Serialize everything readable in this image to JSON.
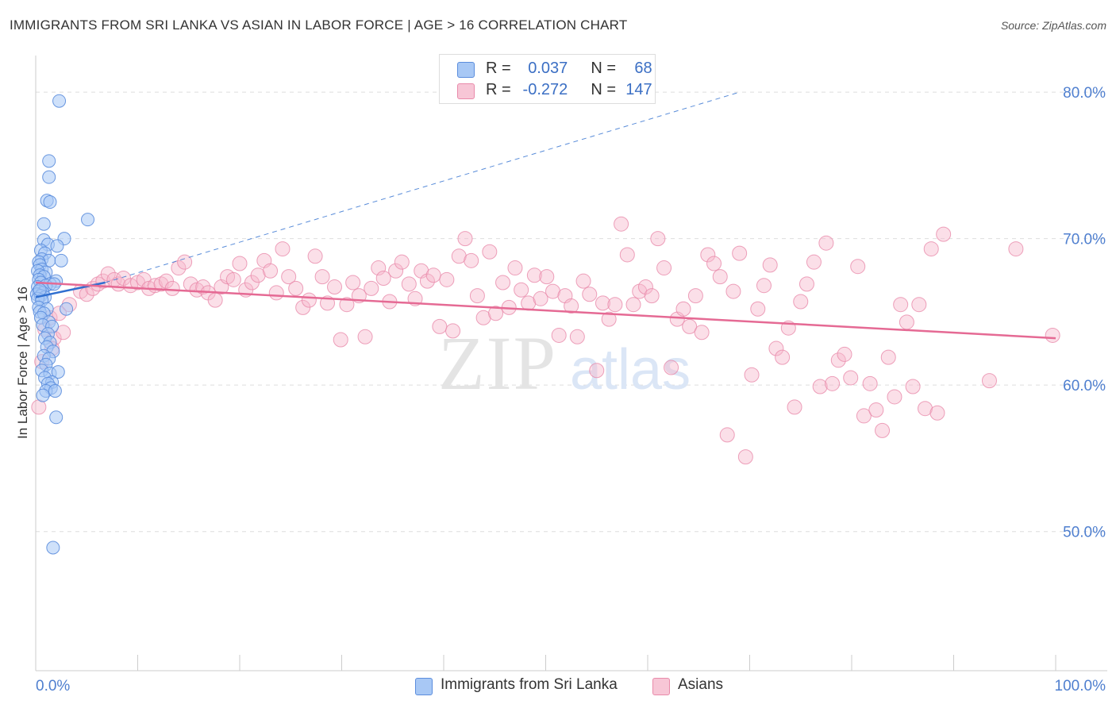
{
  "title": "IMMIGRANTS FROM SRI LANKA VS ASIAN IN LABOR FORCE | AGE > 16 CORRELATION CHART",
  "source": "Source: ZipAtlas.com",
  "watermark": {
    "zip": "ZIP",
    "atlas": "atlas"
  },
  "legend": {
    "series1": {
      "r_label": "R =",
      "r_value": "0.037",
      "n_label": "N =",
      "n_value": "68"
    },
    "series2": {
      "r_label": "R =",
      "r_value": "-0.272",
      "n_label": "N =",
      "n_value": "147"
    }
  },
  "colors": {
    "blue_fill": "#a8c8f5",
    "blue_stroke": "#5b8ddd",
    "blue_line": "#2f6fd0",
    "pink_fill": "#f7b8cc",
    "pink_stroke": "#e98aaa",
    "pink_line": "#e56a94",
    "grid": "#dddddd",
    "tick_text": "#4f7fcf"
  },
  "chart_data": {
    "type": "scatter",
    "title": "IMMIGRANTS FROM SRI LANKA VS ASIAN IN LABOR FORCE | AGE > 16 CORRELATION CHART",
    "xlabel": "",
    "ylabel": "In Labor Force | Age > 16",
    "xlim": [
      0,
      100
    ],
    "ylim": [
      40.5,
      82.5
    ],
    "x_tick_labels": [
      "0.0%",
      "100.0%"
    ],
    "y_ticks": [
      50,
      60,
      70,
      80
    ],
    "y_tick_labels": [
      "50.0%",
      "60.0%",
      "70.0%",
      "80.0%"
    ],
    "series": [
      {
        "name": "Immigrants from Sri Lanka",
        "color": "blue",
        "r": 0.037,
        "n": 68,
        "trend_solid": [
          [
            0,
            66.0
          ],
          [
            6.8,
            67.0
          ]
        ],
        "trend_dashed": [
          [
            6.8,
            67.0
          ],
          [
            69.0,
            80.0
          ]
        ],
        "points": [
          [
            2.3,
            79.4
          ],
          [
            1.3,
            75.3
          ],
          [
            1.3,
            74.2
          ],
          [
            1.1,
            72.6
          ],
          [
            1.4,
            72.5
          ],
          [
            5.1,
            71.3
          ],
          [
            0.8,
            71.0
          ],
          [
            2.8,
            70.0
          ],
          [
            0.8,
            69.9
          ],
          [
            1.2,
            69.6
          ],
          [
            2.1,
            69.5
          ],
          [
            0.5,
            69.2
          ],
          [
            0.9,
            69.0
          ],
          [
            0.6,
            68.6
          ],
          [
            1.3,
            68.5
          ],
          [
            0.3,
            68.4
          ],
          [
            2.5,
            68.5
          ],
          [
            0.4,
            68.2
          ],
          [
            0.6,
            67.9
          ],
          [
            1.0,
            67.7
          ],
          [
            0.2,
            67.8
          ],
          [
            0.4,
            67.5
          ],
          [
            0.8,
            67.4
          ],
          [
            0.3,
            67.2
          ],
          [
            2.0,
            67.1
          ],
          [
            0.5,
            67.0
          ],
          [
            1.4,
            66.9
          ],
          [
            0.2,
            66.7
          ],
          [
            0.6,
            66.6
          ],
          [
            1.0,
            66.8
          ],
          [
            0.3,
            66.4
          ],
          [
            0.7,
            66.3
          ],
          [
            0.1,
            66.2
          ],
          [
            0.5,
            66.1
          ],
          [
            0.9,
            66.0
          ],
          [
            0.2,
            65.9
          ],
          [
            0.6,
            65.8
          ],
          [
            0.3,
            65.3
          ],
          [
            1.1,
            65.2
          ],
          [
            0.4,
            65.0
          ],
          [
            0.8,
            64.9
          ],
          [
            3.0,
            65.2
          ],
          [
            0.5,
            64.6
          ],
          [
            1.3,
            64.3
          ],
          [
            0.7,
            64.1
          ],
          [
            1.6,
            64.0
          ],
          [
            1.2,
            63.5
          ],
          [
            0.9,
            63.2
          ],
          [
            1.4,
            62.9
          ],
          [
            1.1,
            62.6
          ],
          [
            1.7,
            62.3
          ],
          [
            0.8,
            62.0
          ],
          [
            1.3,
            61.8
          ],
          [
            1.0,
            61.4
          ],
          [
            0.6,
            61.0
          ],
          [
            1.4,
            60.8
          ],
          [
            2.2,
            60.9
          ],
          [
            0.9,
            60.5
          ],
          [
            1.6,
            60.2
          ],
          [
            1.2,
            60.1
          ],
          [
            1.5,
            59.8
          ],
          [
            1.0,
            59.6
          ],
          [
            0.7,
            59.3
          ],
          [
            1.9,
            59.6
          ],
          [
            2.0,
            57.8
          ],
          [
            1.7,
            48.9
          ],
          [
            0.4,
            66.5
          ],
          [
            1.8,
            66.9
          ]
        ]
      },
      {
        "name": "Asians",
        "color": "pink",
        "r": -0.272,
        "n": 147,
        "trend_solid": [
          [
            0,
            67.0
          ],
          [
            100,
            63.2
          ]
        ],
        "points": [
          [
            0.3,
            58.5
          ],
          [
            0.6,
            61.6
          ],
          [
            0.9,
            63.8
          ],
          [
            1.4,
            64.6
          ],
          [
            1.8,
            63.2
          ],
          [
            2.3,
            64.9
          ],
          [
            3.3,
            65.5
          ],
          [
            4.4,
            66.4
          ],
          [
            5.0,
            66.2
          ],
          [
            5.6,
            66.6
          ],
          [
            6.1,
            66.9
          ],
          [
            6.6,
            67.1
          ],
          [
            7.1,
            67.6
          ],
          [
            7.7,
            67.2
          ],
          [
            8.1,
            66.9
          ],
          [
            8.6,
            67.3
          ],
          [
            9.3,
            66.8
          ],
          [
            10.0,
            67.0
          ],
          [
            10.6,
            67.2
          ],
          [
            11.1,
            66.6
          ],
          [
            11.7,
            66.8
          ],
          [
            12.3,
            66.9
          ],
          [
            12.8,
            67.1
          ],
          [
            13.4,
            66.6
          ],
          [
            14.0,
            68.0
          ],
          [
            14.6,
            68.4
          ],
          [
            15.2,
            66.9
          ],
          [
            15.8,
            66.5
          ],
          [
            16.4,
            66.7
          ],
          [
            16.9,
            66.3
          ],
          [
            17.6,
            65.8
          ],
          [
            18.2,
            66.7
          ],
          [
            18.8,
            67.4
          ],
          [
            19.4,
            67.2
          ],
          [
            20.0,
            68.3
          ],
          [
            20.6,
            66.5
          ],
          [
            21.2,
            67.0
          ],
          [
            21.8,
            67.5
          ],
          [
            22.4,
            68.5
          ],
          [
            23.0,
            67.8
          ],
          [
            23.6,
            66.3
          ],
          [
            24.2,
            69.3
          ],
          [
            24.8,
            67.4
          ],
          [
            25.5,
            66.6
          ],
          [
            26.2,
            65.3
          ],
          [
            26.8,
            65.8
          ],
          [
            27.4,
            68.8
          ],
          [
            28.1,
            67.4
          ],
          [
            28.6,
            65.6
          ],
          [
            29.3,
            66.7
          ],
          [
            29.9,
            63.1
          ],
          [
            30.5,
            65.5
          ],
          [
            31.1,
            67.0
          ],
          [
            31.7,
            66.1
          ],
          [
            32.3,
            63.3
          ],
          [
            32.9,
            66.6
          ],
          [
            33.6,
            68.0
          ],
          [
            34.1,
            67.3
          ],
          [
            34.7,
            65.7
          ],
          [
            35.3,
            67.8
          ],
          [
            35.9,
            68.4
          ],
          [
            36.6,
            66.9
          ],
          [
            37.2,
            65.9
          ],
          [
            37.8,
            67.8
          ],
          [
            38.4,
            67.1
          ],
          [
            39.0,
            67.5
          ],
          [
            39.6,
            64.0
          ],
          [
            40.3,
            67.2
          ],
          [
            40.9,
            63.7
          ],
          [
            41.5,
            68.8
          ],
          [
            42.1,
            70.0
          ],
          [
            42.7,
            68.5
          ],
          [
            43.3,
            66.1
          ],
          [
            43.9,
            64.6
          ],
          [
            44.5,
            69.1
          ],
          [
            45.1,
            64.9
          ],
          [
            45.8,
            67.0
          ],
          [
            46.4,
            65.3
          ],
          [
            47.0,
            68.0
          ],
          [
            47.6,
            66.5
          ],
          [
            48.3,
            65.6
          ],
          [
            48.9,
            67.5
          ],
          [
            49.5,
            65.9
          ],
          [
            50.1,
            67.4
          ],
          [
            50.7,
            66.4
          ],
          [
            51.3,
            63.4
          ],
          [
            51.9,
            66.1
          ],
          [
            52.5,
            65.4
          ],
          [
            53.1,
            63.3
          ],
          [
            53.7,
            67.1
          ],
          [
            54.3,
            66.2
          ],
          [
            55.0,
            61.0
          ],
          [
            55.6,
            65.6
          ],
          [
            56.2,
            64.5
          ],
          [
            56.8,
            65.5
          ],
          [
            57.4,
            71.0
          ],
          [
            58.0,
            68.9
          ],
          [
            58.6,
            65.5
          ],
          [
            59.2,
            66.4
          ],
          [
            59.8,
            66.7
          ],
          [
            60.4,
            66.1
          ],
          [
            61.0,
            70.0
          ],
          [
            61.6,
            68.0
          ],
          [
            62.3,
            61.2
          ],
          [
            62.9,
            64.5
          ],
          [
            63.5,
            65.2
          ],
          [
            64.1,
            64.0
          ],
          [
            64.7,
            66.1
          ],
          [
            65.3,
            63.6
          ],
          [
            65.9,
            68.9
          ],
          [
            66.5,
            68.3
          ],
          [
            67.1,
            67.4
          ],
          [
            67.8,
            56.6
          ],
          [
            68.4,
            66.4
          ],
          [
            69.0,
            69.0
          ],
          [
            69.6,
            55.1
          ],
          [
            70.2,
            60.7
          ],
          [
            70.8,
            65.2
          ],
          [
            71.4,
            66.8
          ],
          [
            72.0,
            68.2
          ],
          [
            72.6,
            62.5
          ],
          [
            73.2,
            61.9
          ],
          [
            73.8,
            63.9
          ],
          [
            74.4,
            58.5
          ],
          [
            75.0,
            65.7
          ],
          [
            75.6,
            66.9
          ],
          [
            76.3,
            68.4
          ],
          [
            76.9,
            59.9
          ],
          [
            77.5,
            69.7
          ],
          [
            78.1,
            60.1
          ],
          [
            78.7,
            61.7
          ],
          [
            79.3,
            62.1
          ],
          [
            79.9,
            60.5
          ],
          [
            80.6,
            68.1
          ],
          [
            81.2,
            57.9
          ],
          [
            81.8,
            60.1
          ],
          [
            82.4,
            58.3
          ],
          [
            83.0,
            56.9
          ],
          [
            83.6,
            61.9
          ],
          [
            84.2,
            59.2
          ],
          [
            84.8,
            65.5
          ],
          [
            85.4,
            64.3
          ],
          [
            86.0,
            59.9
          ],
          [
            86.6,
            65.5
          ],
          [
            87.2,
            58.4
          ],
          [
            87.8,
            69.3
          ],
          [
            88.4,
            58.1
          ],
          [
            89.0,
            70.3
          ],
          [
            93.5,
            60.3
          ],
          [
            96.1,
            69.3
          ],
          [
            99.7,
            63.4
          ],
          [
            1.6,
            62.5
          ],
          [
            2.7,
            63.6
          ]
        ]
      }
    ]
  }
}
